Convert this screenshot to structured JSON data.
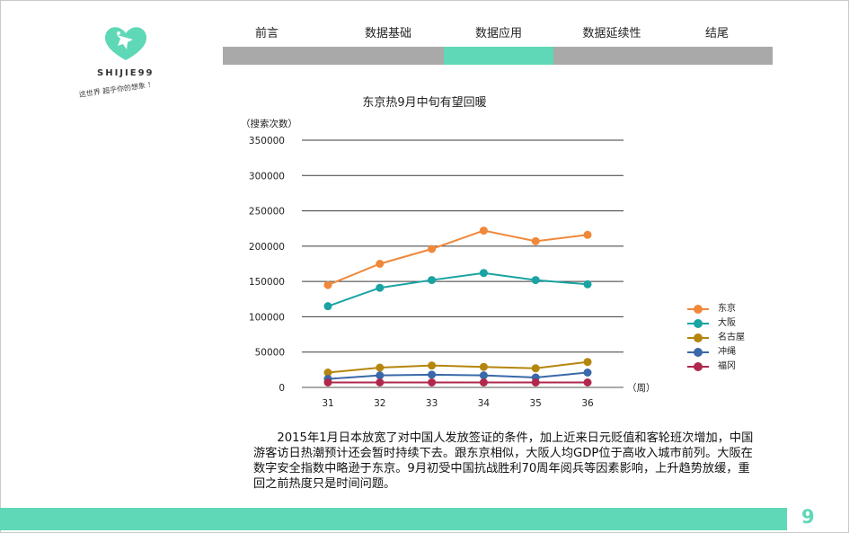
{
  "brand": {
    "logo_text": "SHIJIE99",
    "tagline": "这世界 超乎你的想象 ！",
    "accent_color": "#5ed8b6"
  },
  "nav": {
    "tabs": [
      {
        "label": "前言",
        "active": false
      },
      {
        "label": "数据基础",
        "active": false
      },
      {
        "label": "数据应用",
        "active": true
      },
      {
        "label": "数据延续性",
        "active": false
      },
      {
        "label": "结尾",
        "active": false
      }
    ]
  },
  "chart_data": {
    "type": "line",
    "title": "东京热9月中旬有望回暖",
    "ylabel": "（搜索次数）",
    "xlabel": "（周）",
    "categories": [
      "31",
      "32",
      "33",
      "34",
      "35",
      "36"
    ],
    "y_ticks": [
      "0",
      "50000",
      "100000",
      "150000",
      "200000",
      "250000",
      "300000",
      "350000"
    ],
    "ylim": [
      0,
      350000
    ],
    "grid": true,
    "legend_position": "right",
    "series": [
      {
        "name": "东京",
        "color": "#f0883a",
        "values": [
          145000,
          175000,
          196000,
          222000,
          207000,
          216000
        ]
      },
      {
        "name": "大阪",
        "color": "#1aa3a3",
        "values": [
          115000,
          141000,
          152000,
          162000,
          152000,
          146000
        ]
      },
      {
        "name": "名古屋",
        "color": "#b5860d",
        "values": [
          21000,
          28000,
          31000,
          29000,
          27000,
          36000
        ]
      },
      {
        "name": "冲绳",
        "color": "#3a68a8",
        "values": [
          12000,
          17000,
          18000,
          17000,
          14000,
          21000
        ]
      },
      {
        "name": "福冈",
        "color": "#b0284c",
        "values": [
          7000,
          7000,
          7000,
          7000,
          7000,
          7000
        ]
      }
    ]
  },
  "body": {
    "paragraph": "2015年1月日本放宽了对中国人发放签证的条件，加上近来日元贬值和客轮班次增加，中国游客访日热潮预计还会暂时持续下去。跟东京相似，大阪人均GDP位于高收入城市前列。大阪在数字安全指数中略逊于东京。9月初受中国抗战胜利70周年阅兵等因素影响，上升趋势放缓，重回之前热度只是时间问题。"
  },
  "footer": {
    "page_number": "9"
  }
}
